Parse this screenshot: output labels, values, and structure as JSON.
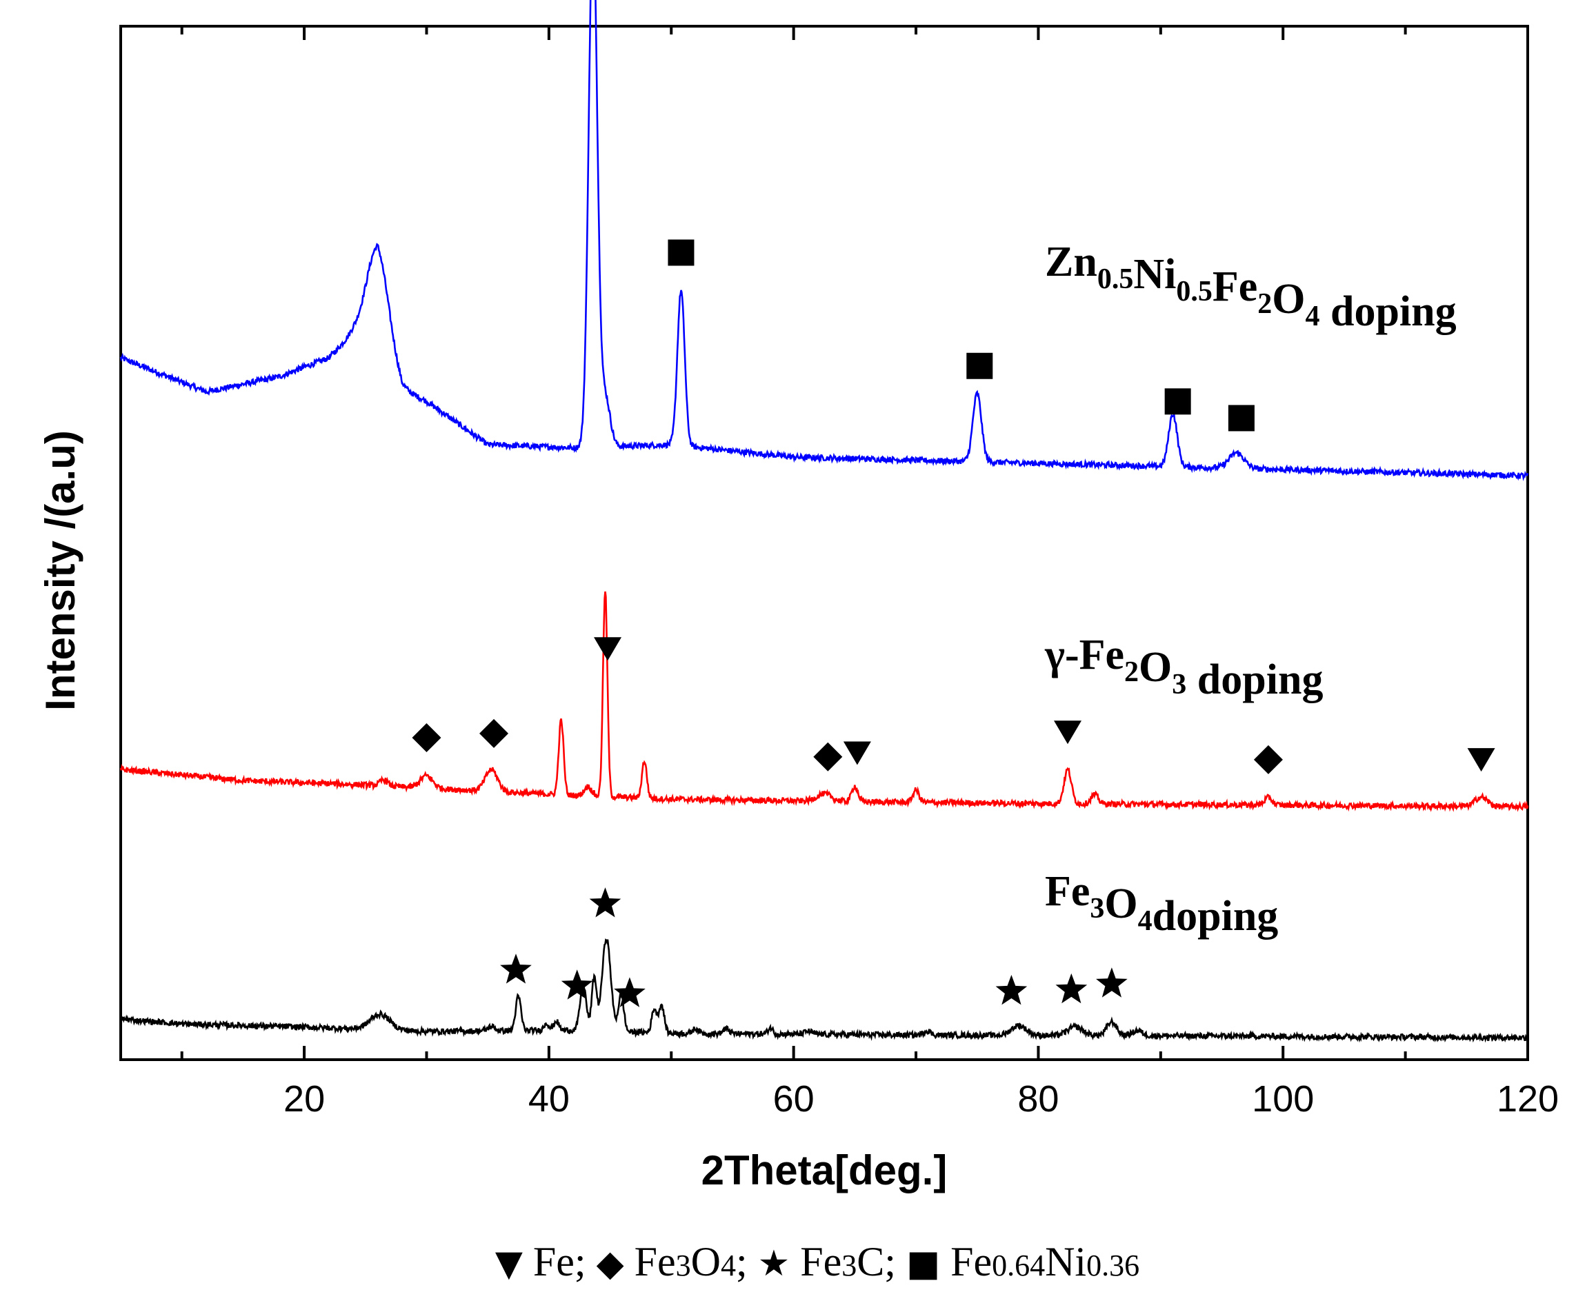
{
  "chart_data": {
    "type": "line",
    "xlabel": "2Theta[deg.]",
    "ylabel": "Intensity /(a.u)",
    "xlim": [
      5,
      120
    ],
    "xticks": [
      20,
      40,
      60,
      80,
      100,
      120
    ],
    "tick_labels": [
      "20",
      "40",
      "60",
      "80",
      "100",
      "120"
    ],
    "grid": false,
    "series": [
      {
        "name_parts": [
          [
            "Zn",
            ""
          ],
          [
            "0.5",
            "sub"
          ],
          [
            "Ni",
            ""
          ],
          [
            "0.5",
            "sub"
          ],
          [
            "Fe",
            ""
          ],
          [
            "2",
            "sub"
          ],
          [
            "O",
            ""
          ],
          [
            "4",
            "sub"
          ],
          [
            " doping",
            ""
          ]
        ],
        "color": "#0000ff",
        "baseline": 0.94,
        "background": [
          [
            5,
            1.9
          ],
          [
            12,
            1.35
          ],
          [
            18,
            1.6
          ],
          [
            22,
            1.9
          ],
          [
            24,
            2.3
          ],
          [
            26,
            2.4
          ],
          [
            28,
            1.4
          ],
          [
            30,
            1.2
          ],
          [
            35,
            0.5
          ],
          [
            42,
            0.45
          ],
          [
            50,
            0.5
          ],
          [
            60,
            0.3
          ],
          [
            80,
            0.2
          ],
          [
            120,
            0.0
          ]
        ],
        "peaks": [
          [
            26,
            1.3,
            0.9
          ],
          [
            43.6,
            8.5,
            0.35
          ],
          [
            44.6,
            0.8,
            0.4
          ],
          [
            50.8,
            2.5,
            0.3
          ],
          [
            75.0,
            1.1,
            0.35
          ],
          [
            91.0,
            0.85,
            0.35
          ],
          [
            96.2,
            0.25,
            0.6
          ]
        ],
        "markers": [
          [
            43.6,
            "square"
          ],
          [
            50.8,
            "square"
          ],
          [
            75.2,
            "square"
          ],
          [
            91.4,
            "square"
          ],
          [
            96.6,
            "square"
          ]
        ]
      },
      {
        "name_parts": [
          [
            "γ-Fe",
            ""
          ],
          [
            "2",
            "sub"
          ],
          [
            "O",
            ""
          ],
          [
            "3",
            "sub"
          ],
          [
            " doping",
            ""
          ]
        ],
        "color": "#ff0000",
        "baseline": 0.5,
        "background": [
          [
            5,
            0.6
          ],
          [
            15,
            0.42
          ],
          [
            25,
            0.35
          ],
          [
            30,
            0.3
          ],
          [
            40,
            0.2
          ],
          [
            50,
            0.12
          ],
          [
            65,
            0.08
          ],
          [
            80,
            0.05
          ],
          [
            120,
            0.0
          ]
        ],
        "peaks": [
          [
            26.5,
            0.1,
            0.3
          ],
          [
            30.0,
            0.2,
            0.5
          ],
          [
            35.3,
            0.35,
            0.5
          ],
          [
            41.0,
            1.2,
            0.2
          ],
          [
            43.2,
            0.15,
            0.3
          ],
          [
            44.6,
            3.3,
            0.18
          ],
          [
            47.8,
            0.6,
            0.2
          ],
          [
            62.5,
            0.12,
            0.6
          ],
          [
            65.0,
            0.25,
            0.25
          ],
          [
            70.0,
            0.2,
            0.25
          ],
          [
            82.4,
            0.55,
            0.3
          ],
          [
            84.6,
            0.15,
            0.3
          ],
          [
            98.8,
            0.12,
            0.3
          ],
          [
            116.2,
            0.15,
            0.5
          ]
        ],
        "markers": [
          [
            30.0,
            "diamond"
          ],
          [
            35.5,
            "diamond"
          ],
          [
            44.8,
            "triangle"
          ],
          [
            62.8,
            "diamond"
          ],
          [
            65.2,
            "triangle"
          ],
          [
            82.4,
            "triangle"
          ],
          [
            98.8,
            "diamond"
          ],
          [
            116.2,
            "triangle"
          ]
        ]
      },
      {
        "name_parts": [
          [
            "Fe",
            ""
          ],
          [
            "3",
            "sub"
          ],
          [
            "O",
            ""
          ],
          [
            "4",
            "sub"
          ],
          [
            "doping",
            ""
          ]
        ],
        "color": "#000000",
        "baseline": 0.07,
        "background": [
          [
            5,
            0.3
          ],
          [
            10,
            0.22
          ],
          [
            20,
            0.17
          ],
          [
            30,
            0.1
          ],
          [
            42,
            0.12
          ],
          [
            50,
            0.07
          ],
          [
            70,
            0.04
          ],
          [
            90,
            0.03
          ],
          [
            120,
            0.0
          ]
        ],
        "peaks": [
          [
            26.2,
            0.25,
            0.8
          ],
          [
            35.3,
            0.07,
            0.3
          ],
          [
            37.5,
            0.55,
            0.22
          ],
          [
            39.8,
            0.12,
            0.2
          ],
          [
            40.6,
            0.15,
            0.2
          ],
          [
            42.8,
            0.75,
            0.25
          ],
          [
            43.7,
            0.85,
            0.2
          ],
          [
            44.7,
            1.5,
            0.35
          ],
          [
            45.9,
            0.6,
            0.22
          ],
          [
            48.6,
            0.38,
            0.2
          ],
          [
            49.2,
            0.45,
            0.22
          ],
          [
            52.0,
            0.08,
            0.25
          ],
          [
            54.5,
            0.08,
            0.25
          ],
          [
            58.1,
            0.1,
            0.2
          ],
          [
            61.2,
            0.05,
            0.3
          ],
          [
            70.9,
            0.07,
            0.3
          ],
          [
            78.4,
            0.16,
            0.6
          ],
          [
            83.0,
            0.14,
            0.6
          ],
          [
            86.0,
            0.22,
            0.4
          ],
          [
            88.1,
            0.08,
            0.4
          ]
        ],
        "markers": [
          [
            37.3,
            "star"
          ],
          [
            42.3,
            "star"
          ],
          [
            44.6,
            "star"
          ],
          [
            46.6,
            "star"
          ],
          [
            77.8,
            "star"
          ],
          [
            82.7,
            "star"
          ],
          [
            86.0,
            "star"
          ]
        ]
      }
    ],
    "legend_parts": [
      [
        "▼",
        "glyph"
      ],
      [
        " Fe; ",
        ""
      ],
      [
        "◆",
        "glyph"
      ],
      [
        " Fe",
        ""
      ],
      [
        "3",
        "lsub"
      ],
      [
        "O",
        ""
      ],
      [
        "4",
        "lsub"
      ],
      [
        "; ",
        ""
      ],
      [
        "★",
        "glyph"
      ],
      [
        " Fe",
        ""
      ],
      [
        "3",
        "lsub"
      ],
      [
        "C; ",
        ""
      ],
      [
        "■",
        "glyph"
      ],
      [
        " Fe",
        ""
      ],
      [
        "0.64",
        "lsub"
      ],
      [
        "Ni",
        ""
      ],
      [
        "0.36",
        "lsub"
      ]
    ],
    "legend_placement": "bottom-center"
  }
}
